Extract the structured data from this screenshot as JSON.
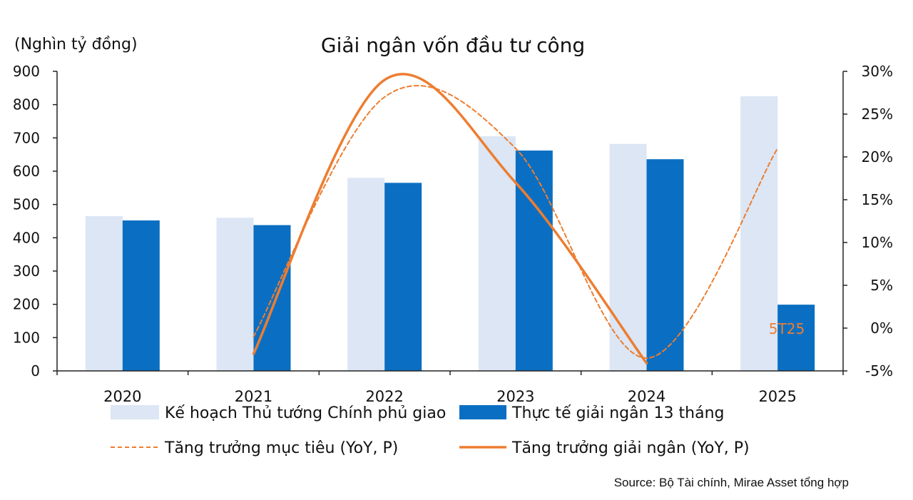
{
  "chart_data": {
    "type": "bar",
    "title": "Giải ngân vốn đầu tư công",
    "unit_label": "(Nghìn tỷ đồng)",
    "categories": [
      "2020",
      "2021",
      "2022",
      "2023",
      "2024",
      "2025"
    ],
    "y_left": {
      "min": 0,
      "max": 900,
      "step": 100,
      "ticks": [
        "0",
        "100",
        "200",
        "300",
        "400",
        "500",
        "600",
        "700",
        "800",
        "900"
      ]
    },
    "y_right": {
      "min": -5,
      "max": 30,
      "step": 5,
      "ticks": [
        "-5%",
        "0%",
        "5%",
        "10%",
        "15%",
        "20%",
        "25%",
        "30%"
      ]
    },
    "series": [
      {
        "name": "Kế hoạch Thủ tướng Chính phủ giao",
        "kind": "bar",
        "axis": "left",
        "color": "#dce6f4",
        "values": [
          465,
          460,
          580,
          705,
          682,
          825
        ]
      },
      {
        "name": "Thực tế giải ngân 13 tháng",
        "kind": "bar",
        "axis": "left",
        "color": "#0a6fc2",
        "values": [
          452,
          438,
          565,
          662,
          636,
          199
        ]
      },
      {
        "name": "Tăng trưởng mục tiêu (YoY, P)",
        "kind": "line",
        "style": "dashed",
        "smooth": true,
        "axis": "right",
        "color": "#ed7d31",
        "values": [
          null,
          -1.0,
          27.0,
          21.0,
          -3.5,
          21.0
        ]
      },
      {
        "name": "Tăng trưởng giải ngân (YoY, P)",
        "kind": "line",
        "style": "solid",
        "smooth": true,
        "axis": "right",
        "color": "#ed7d31",
        "values": [
          null,
          -3.0,
          29.0,
          17.0,
          -4.1,
          null
        ]
      }
    ],
    "annotations": [
      {
        "text": "5T25",
        "category": "2025",
        "color": "#ed7d31"
      }
    ],
    "legend_placement": "bottom",
    "grid": false,
    "source": "Source: Bộ Tài chính, Mirae Asset tổng hợp"
  }
}
